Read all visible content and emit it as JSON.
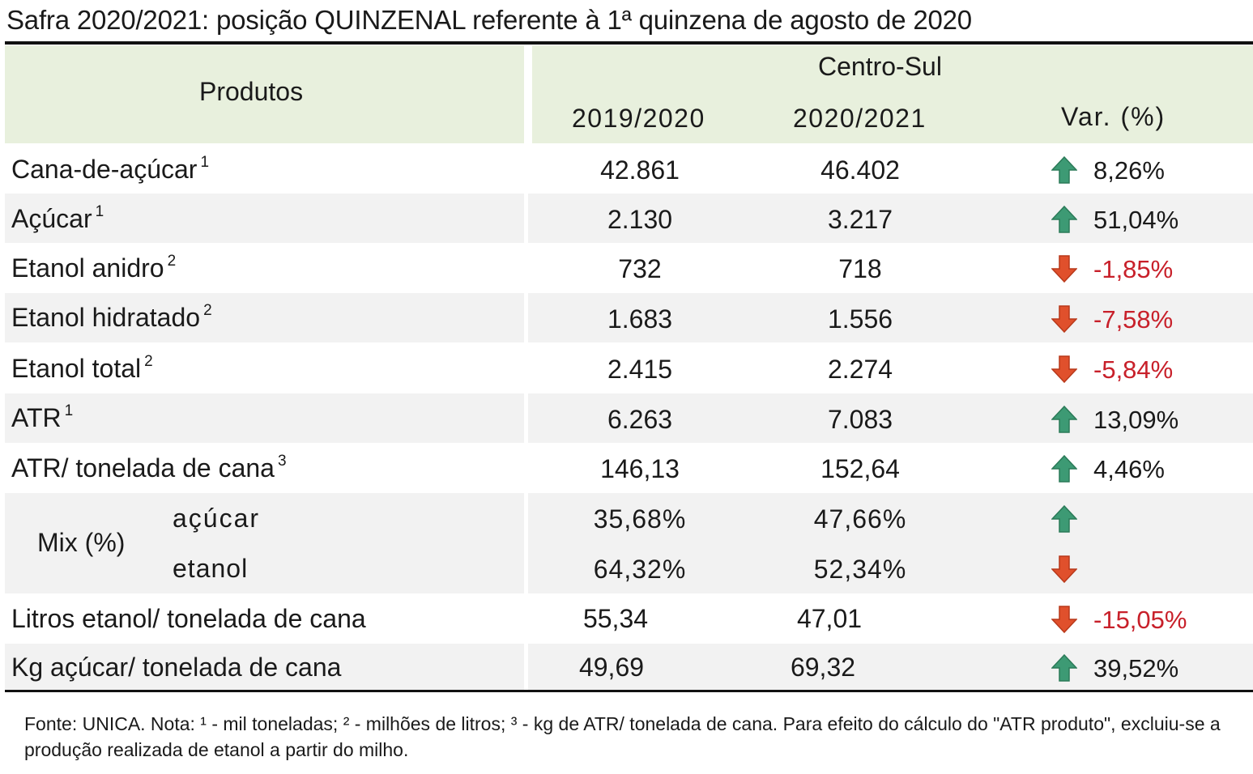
{
  "title": "Safra 2020/2021: posição QUINZENAL referente à 1ª quinzena de agosto de 2020",
  "header": {
    "produtos": "Produtos",
    "region": "Centro-Sul",
    "col1": "2019/2020",
    "col2": "2020/2021",
    "col3": "Var. (%)"
  },
  "rows": [
    {
      "label": "Cana-de-açúcar",
      "sup": "1",
      "v1": "42.861",
      "v2": "46.402",
      "trend": "up",
      "var": "8,26%"
    },
    {
      "label": "Açúcar",
      "sup": "1",
      "v1": "2.130",
      "v2": "3.217",
      "trend": "up",
      "var": "51,04%"
    },
    {
      "label": "Etanol anidro",
      "sup": "2",
      "v1": "732",
      "v2": "718",
      "trend": "down",
      "var": "-1,85%"
    },
    {
      "label": "Etanol hidratado",
      "sup": "2",
      "v1": "1.683",
      "v2": "1.556",
      "trend": "down",
      "var": "-7,58%"
    },
    {
      "label": "Etanol total",
      "sup": "2",
      "v1": "2.415",
      "v2": "2.274",
      "trend": "down",
      "var": "-5,84%"
    },
    {
      "label": "ATR",
      "sup": "1",
      "v1": "6.263",
      "v2": "7.083",
      "trend": "up",
      "var": "13,09%"
    },
    {
      "label": "ATR/ tonelada de cana",
      "sup": "3",
      "v1": "146,13",
      "v2": "152,64",
      "trend": "up",
      "var": "4,46%"
    }
  ],
  "mix": {
    "label": "Mix (%)",
    "acucar": {
      "label": "açúcar",
      "v1": "35,68%",
      "v2": "47,66%",
      "trend": "up"
    },
    "etanol": {
      "label": "etanol",
      "v1": "64,32%",
      "v2": "52,34%",
      "trend": "down"
    }
  },
  "tail_rows": [
    {
      "label": "Litros etanol/ tonelada de cana",
      "v1": "55,34",
      "v2": "47,01",
      "trend": "down",
      "var": "-15,05%"
    },
    {
      "label": "Kg açúcar/ tonelada de cana",
      "v1": "49,69",
      "v2": "69,32",
      "trend": "up",
      "var": "39,52%"
    }
  ],
  "note": "Fonte: UNICA. Nota: ¹ - mil toneladas; ² - milhões de litros; ³ - kg de ATR/ tonelada de cana. Para efeito do cálculo do \"ATR produto\", excluiu-se a produção realizada de etanol a partir do milho.",
  "colors": {
    "header_bg": "#e8f0dd",
    "row_shade": "#f2f2f2",
    "up": "#3d9a74",
    "down": "#e0502c",
    "negative_text": "#c8202a"
  },
  "icons": {
    "up": "arrow-up-icon",
    "down": "arrow-down-icon"
  }
}
